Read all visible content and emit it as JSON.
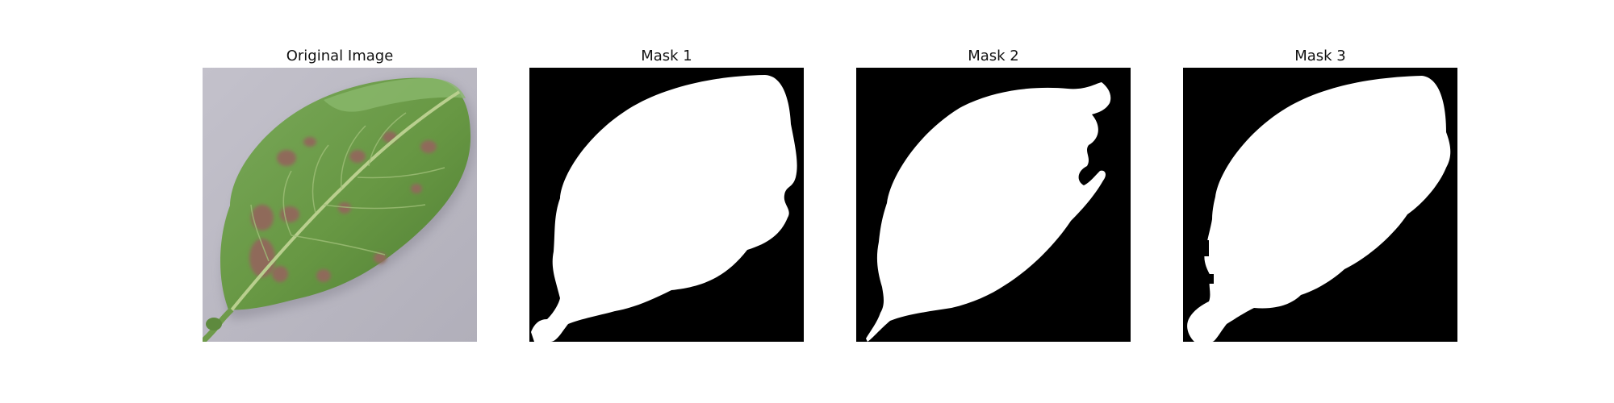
{
  "figure": {
    "panels": [
      {
        "title": "Original Image",
        "content": "photo of a green leaf with brown spots on a gray surface"
      },
      {
        "title": "Mask 1",
        "content": "binary segmentation mask"
      },
      {
        "title": "Mask 2",
        "content": "binary segmentation mask"
      },
      {
        "title": "Mask 3",
        "content": "binary segmentation mask"
      }
    ],
    "colors": {
      "background": "#b9b7c2",
      "leaf": "#6a9a48",
      "spots": "#8f6b5a",
      "mask_background": "#000000",
      "mask_foreground": "#ffffff"
    }
  }
}
